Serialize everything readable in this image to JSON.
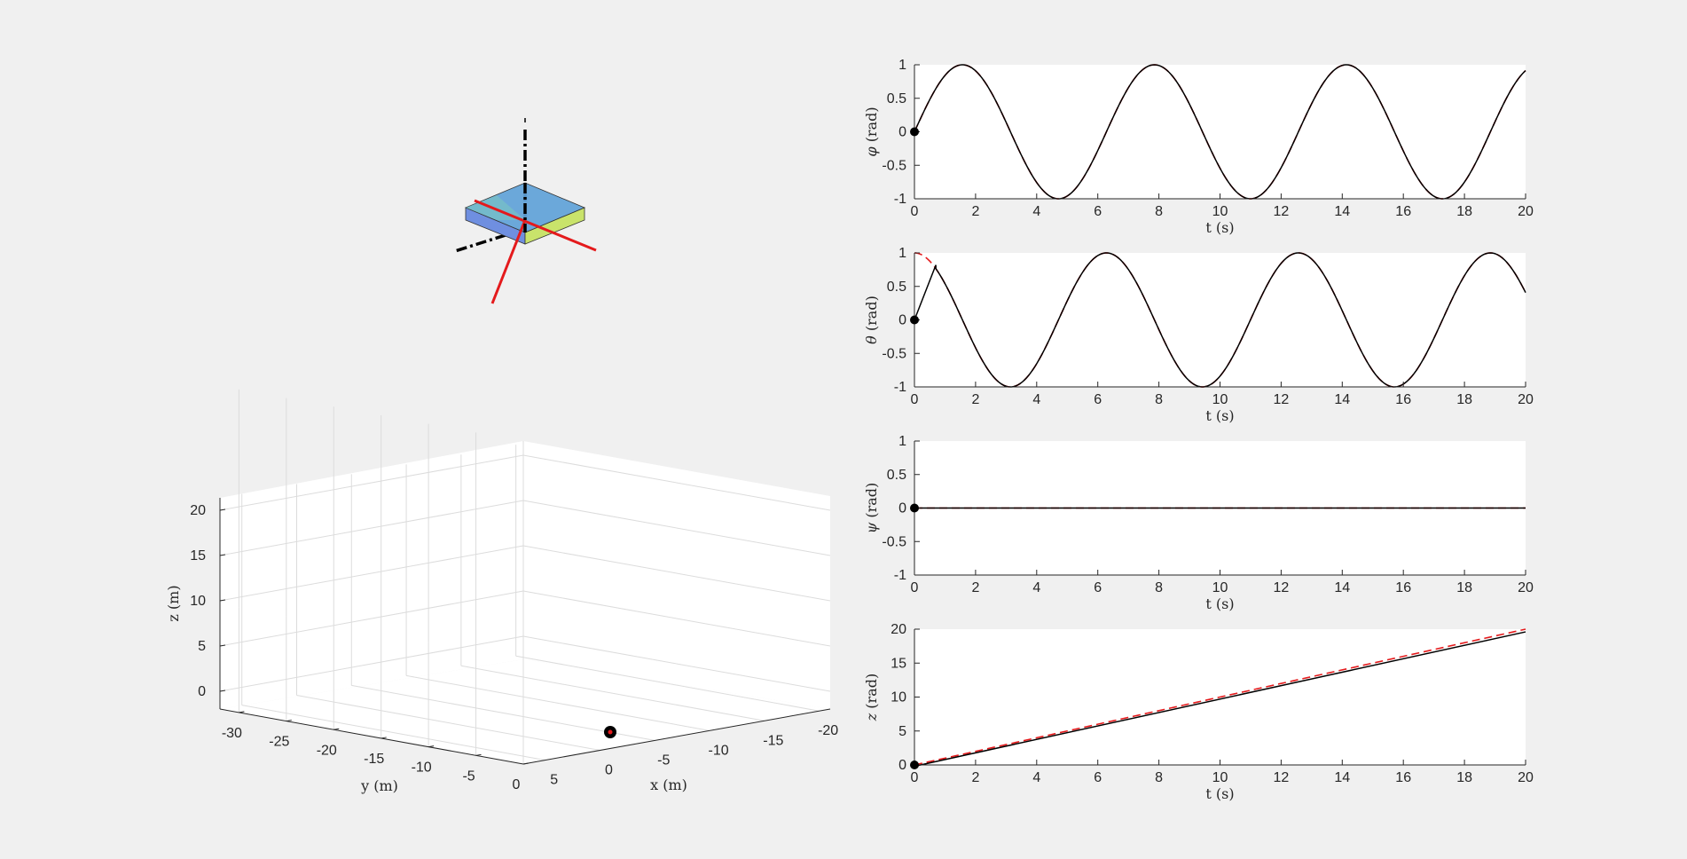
{
  "chart_data": [
    {
      "type": "line",
      "xlabel": "t (s)",
      "ylabel_sym": "φ",
      "ylabel_unit": " (rad)",
      "xlim": [
        0,
        20
      ],
      "ylim": [
        -1,
        1
      ],
      "xticks": [
        "0",
        "2",
        "4",
        "6",
        "8",
        "10",
        "12",
        "14",
        "16",
        "18",
        "20"
      ],
      "yticks": [
        "1",
        "0.5",
        "0",
        "-0.5",
        "-1"
      ],
      "series": [
        {
          "role": "reference",
          "style": "dashed",
          "color": "#e41a1c",
          "function": "sin(t)"
        },
        {
          "role": "actual",
          "style": "solid",
          "color": "#000000",
          "function": "sin(t)"
        }
      ],
      "marker": {
        "t": 0,
        "value": 0
      }
    },
    {
      "type": "line",
      "xlabel": "t (s)",
      "ylabel_sym": "θ",
      "ylabel_unit": " (rad)",
      "xlim": [
        0,
        20
      ],
      "ylim": [
        -1,
        1
      ],
      "xticks": [
        "0",
        "2",
        "4",
        "6",
        "8",
        "10",
        "12",
        "14",
        "16",
        "18",
        "20"
      ],
      "yticks": [
        "1",
        "0.5",
        "0",
        "-0.5",
        "-1"
      ],
      "series": [
        {
          "role": "reference",
          "style": "dashed",
          "color": "#e41a1c",
          "function": "cos(t)"
        },
        {
          "role": "actual",
          "style": "solid",
          "color": "#000000",
          "function": "cos(t)",
          "start_points": [
            [
              0,
              0
            ],
            [
              0.7,
              0.82
            ]
          ]
        }
      ],
      "marker": {
        "t": 0,
        "value": 0
      }
    },
    {
      "type": "line",
      "xlabel": "t (s)",
      "ylabel_sym": "ψ",
      "ylabel_unit": " (rad)",
      "xlim": [
        0,
        20
      ],
      "ylim": [
        -1,
        1
      ],
      "xticks": [
        "0",
        "2",
        "4",
        "6",
        "8",
        "10",
        "12",
        "14",
        "16",
        "18",
        "20"
      ],
      "yticks": [
        "1",
        "0.5",
        "0",
        "-0.5",
        "-1"
      ],
      "series": [
        {
          "role": "reference",
          "style": "dashed",
          "color": "#e41a1c",
          "x": [
            0,
            20
          ],
          "y": [
            0,
            0
          ]
        },
        {
          "role": "actual",
          "style": "solid",
          "color": "#000000",
          "x": [
            0,
            20
          ],
          "y": [
            0,
            0
          ]
        }
      ],
      "marker": {
        "t": 0,
        "value": 0
      }
    },
    {
      "type": "line",
      "xlabel": "t (s)",
      "ylabel_sym": "z",
      "ylabel_unit": " (rad)",
      "xlim": [
        0,
        20
      ],
      "ylim": [
        0,
        20
      ],
      "xticks": [
        "0",
        "2",
        "4",
        "6",
        "8",
        "10",
        "12",
        "14",
        "16",
        "18",
        "20"
      ],
      "yticks": [
        "20",
        "15",
        "10",
        "5",
        "0"
      ],
      "series": [
        {
          "role": "reference",
          "style": "dashed",
          "color": "#e41a1c",
          "x": [
            0,
            20
          ],
          "y": [
            0,
            20
          ]
        },
        {
          "role": "actual",
          "style": "solid",
          "color": "#000000",
          "x": [
            0,
            20
          ],
          "y": [
            -0.2,
            19.6
          ]
        }
      ],
      "marker": {
        "t": 0,
        "value": 0
      }
    },
    {
      "type": "scatter",
      "plot": "3d-trajectory",
      "xlabel": "x (m)",
      "ylabel": "y (m)",
      "zlabel": "z (m)",
      "xticks": [
        "5",
        "0",
        "-5",
        "-10",
        "-15",
        "-20"
      ],
      "yticks": [
        "-30",
        "-25",
        "-20",
        "-15",
        "-10",
        "-5",
        "0"
      ],
      "zticks": [
        "20",
        "15",
        "10",
        "5",
        "0"
      ],
      "grid": true,
      "points": [
        {
          "x": 0,
          "y": 0,
          "z": 0,
          "color": "#e41a1c"
        }
      ]
    }
  ],
  "body_view": {
    "type": "3d-body",
    "colors": {
      "top": "#5b9bd5",
      "side_front": "#c9e36b",
      "side_left": "#7fb6e6",
      "axis_body": "#e41a1c",
      "axis_world": "#000000"
    }
  }
}
